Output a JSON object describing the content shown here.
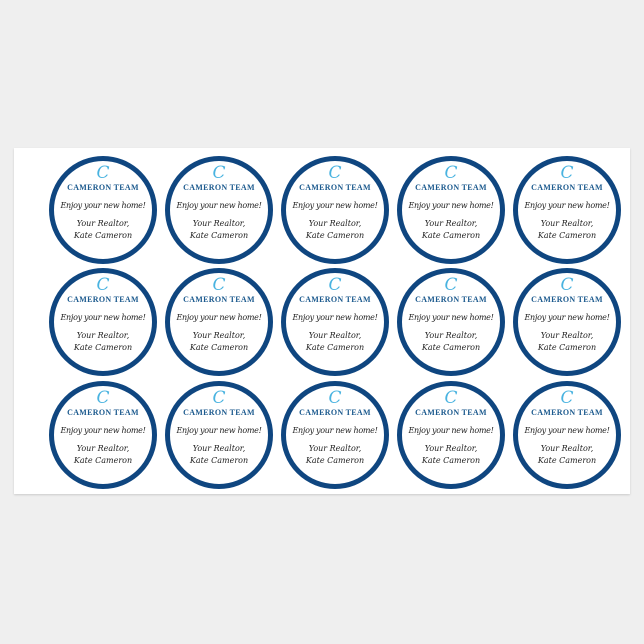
{
  "sticker": {
    "brand": "CAMERON TEAM",
    "brand_initial": "C",
    "message": "Enjoy your new home!",
    "line1": "Your Realtor,",
    "line2": "Kate Cameron"
  },
  "grid": {
    "rows": 3,
    "columns": 5
  },
  "colors": {
    "ring": "#0f4680",
    "logo_accent": "#49b3e0",
    "sheet": "#ffffff",
    "background": "#efefef"
  }
}
